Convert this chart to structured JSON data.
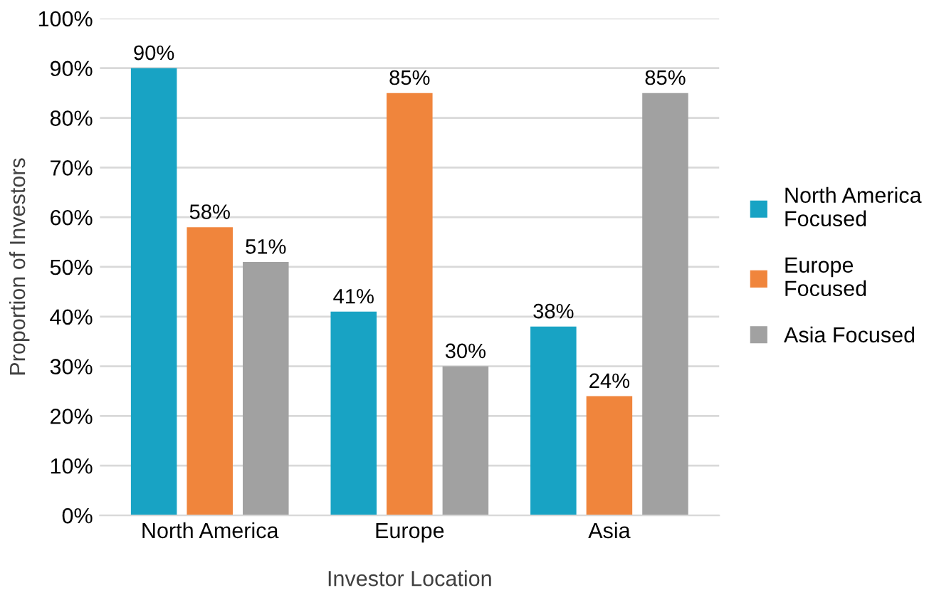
{
  "chart_data": {
    "type": "bar",
    "categories": [
      "North America",
      "Europe",
      "Asia"
    ],
    "series": [
      {
        "name": "North America\nFocused",
        "color": "#18a3c4",
        "values": [
          90,
          41,
          38
        ],
        "value_labels": [
          "90%",
          "41%",
          "38%"
        ]
      },
      {
        "name": "Europe\nFocused",
        "color": "#f0853c",
        "values": [
          58,
          85,
          24
        ],
        "value_labels": [
          "58%",
          "85%",
          "24%"
        ]
      },
      {
        "name": "Asia Focused",
        "color": "#a1a1a1",
        "values": [
          51,
          30,
          85
        ],
        "value_labels": [
          "51%",
          "30%",
          "85%"
        ]
      }
    ],
    "xlabel": "Investor Location",
    "ylabel": "Proportion of Investors",
    "ylim": [
      0,
      100
    ],
    "yticks": [
      {
        "value": 0,
        "label": "0%"
      },
      {
        "value": 10,
        "label": "10%"
      },
      {
        "value": 20,
        "label": "20%"
      },
      {
        "value": 30,
        "label": "30%"
      },
      {
        "value": 40,
        "label": "40%"
      },
      {
        "value": 50,
        "label": "50%"
      },
      {
        "value": 60,
        "label": "60%"
      },
      {
        "value": 70,
        "label": "70%"
      },
      {
        "value": 80,
        "label": "80%"
      },
      {
        "value": 90,
        "label": "90%"
      },
      {
        "value": 100,
        "label": "100%"
      }
    ],
    "grid": "y",
    "legend": "right"
  }
}
